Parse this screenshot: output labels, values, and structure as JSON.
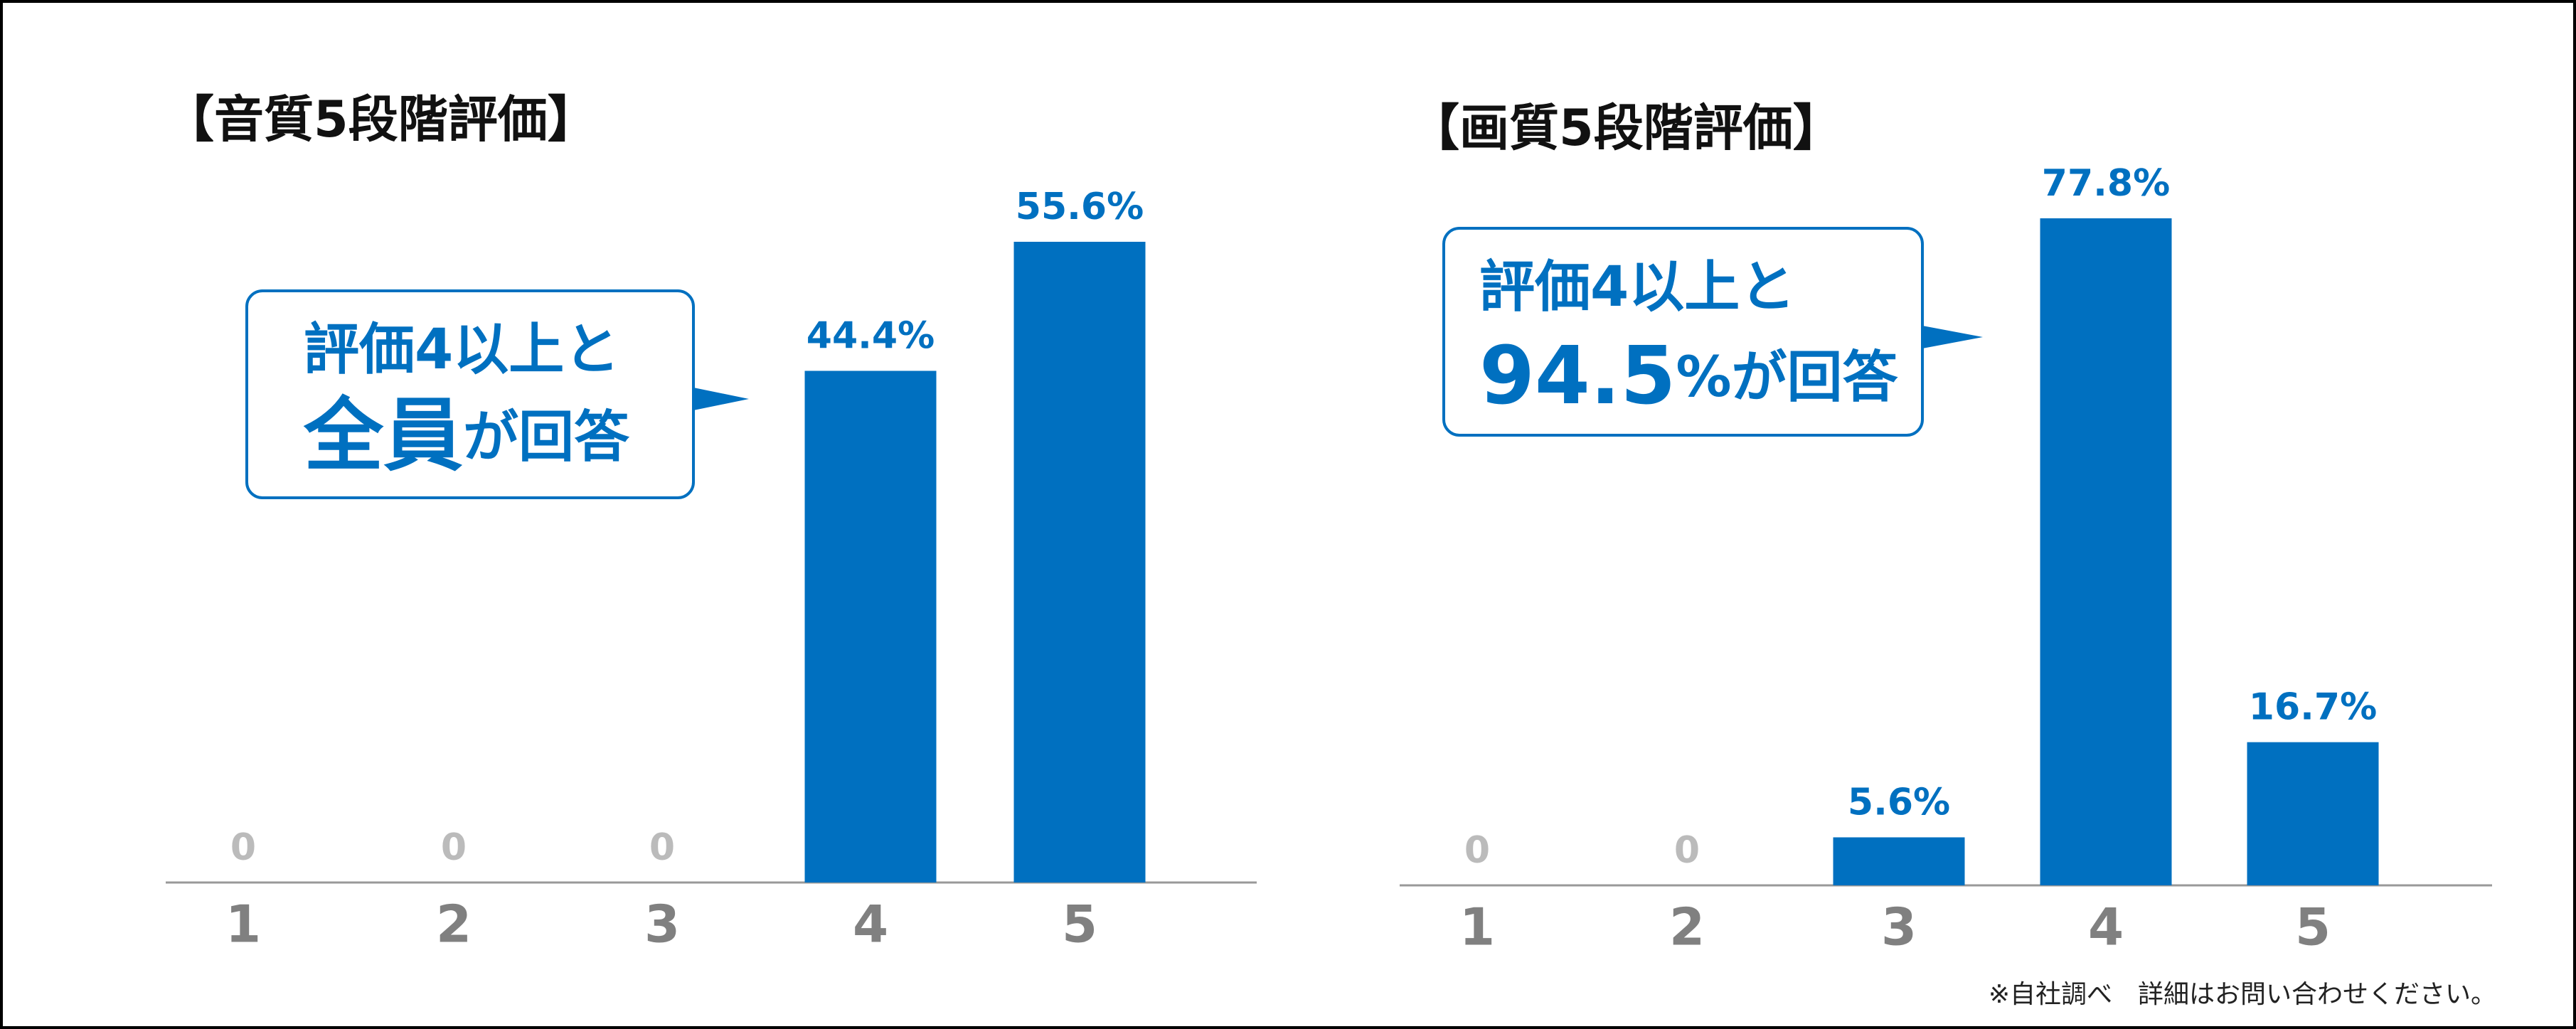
{
  "chart_data": [
    {
      "type": "bar",
      "title": "【音質5段階評価】",
      "categories": [
        "1",
        "2",
        "3",
        "4",
        "5"
      ],
      "values": [
        0,
        0,
        0,
        44.4,
        55.6
      ],
      "value_labels": [
        "0",
        "0",
        "0",
        "44.4%",
        "55.6%"
      ],
      "color": "#0070c0",
      "callout": [
        [
          "評価4以上と"
        ],
        [
          "全員",
          "が回答"
        ]
      ]
    },
    {
      "type": "bar",
      "title": "【画質5段階評価】",
      "categories": [
        "1",
        "2",
        "3",
        "4",
        "5"
      ],
      "values": [
        0,
        0,
        5.6,
        77.8,
        16.7
      ],
      "value_labels": [
        "0",
        "0",
        "5.6%",
        "77.8%",
        "16.7%"
      ],
      "color": "#0070c0",
      "callout": [
        [
          "評価4以上と"
        ],
        [
          "94.5",
          "%が回答"
        ]
      ]
    }
  ],
  "footnote": "※自社調べ　詳細はお問い合わせください。"
}
